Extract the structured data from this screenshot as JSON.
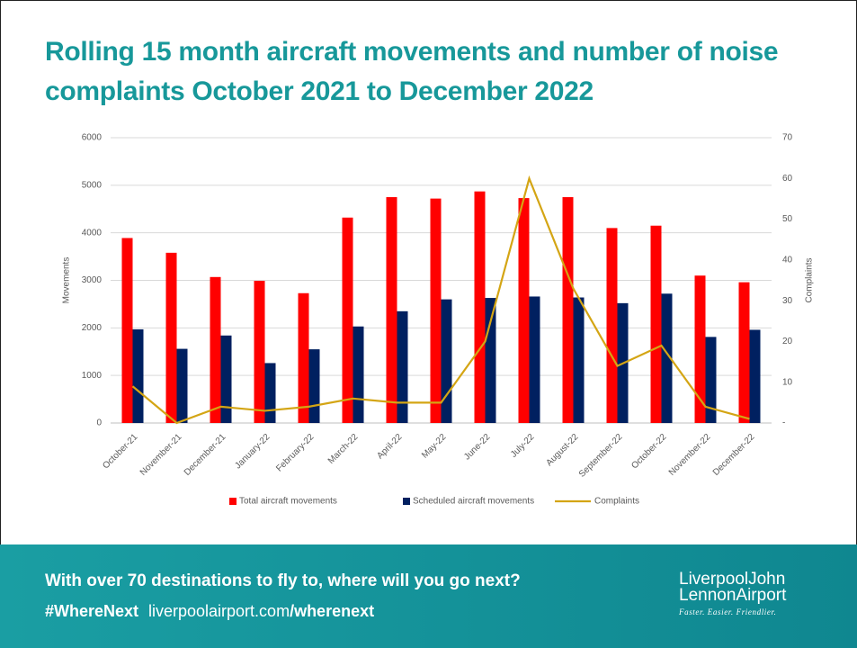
{
  "chart_data": {
    "type": "bar",
    "title": "Rolling 15 month aircraft movements and number of noise complaints October 2021 to December 2022",
    "categories": [
      "October-21",
      "November-21",
      "December-21",
      "January-22",
      "February-22",
      "March-22",
      "April-22",
      "May-22",
      "June-22",
      "July-22",
      "August-22",
      "September-22",
      "October-22",
      "November-22",
      "December-22"
    ],
    "series": [
      {
        "name": "Total aircraft movements",
        "type": "bar",
        "color": "#ff0000",
        "values": [
          3890,
          3580,
          3070,
          2990,
          2730,
          4320,
          4750,
          4720,
          4870,
          4730,
          4750,
          4100,
          4150,
          3100,
          2960
        ]
      },
      {
        "name": "Scheduled aircraft movements",
        "type": "bar",
        "color": "#002060",
        "values": [
          1970,
          1560,
          1840,
          1260,
          1550,
          2030,
          2350,
          2600,
          2630,
          2660,
          2640,
          2520,
          2720,
          1810,
          1960
        ]
      },
      {
        "name": "Complaints",
        "type": "line",
        "axis": "y2",
        "color": "#d4a514",
        "values": [
          9,
          0,
          4,
          3,
          4,
          6,
          5,
          5,
          20,
          60,
          33,
          14,
          19,
          4,
          1
        ]
      }
    ],
    "ylabel": "Movements",
    "y2label": "Complaints",
    "ylim": [
      0,
      6000
    ],
    "yticks": [
      0,
      1000,
      2000,
      3000,
      4000,
      5000,
      6000
    ],
    "y2lim": [
      0,
      70
    ],
    "y2ticks": [
      {
        "value": 0,
        "label": "-"
      },
      10,
      20,
      30,
      40,
      50,
      60,
      70
    ],
    "grid": true,
    "legend": "bottom"
  },
  "banner": {
    "tagline": "With over 70 destinations to fly to, where will you go next?",
    "hashtag": "#WhereNext",
    "url_domain": "liverpoolairport.com",
    "url_path": "/wherenext",
    "logo_line1": "LiverpoolJohn",
    "logo_line2": "LennonAirport",
    "logo_slogan": "Faster. Easier. Friendlier."
  }
}
